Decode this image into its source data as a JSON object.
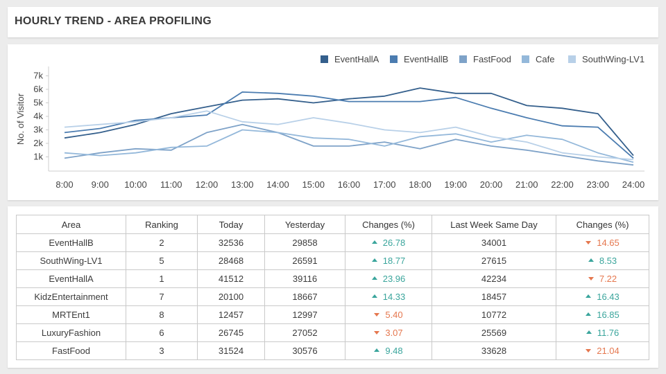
{
  "header": {
    "title": "HOURLY TREND - AREA PROFILING"
  },
  "chart_data": {
    "type": "line",
    "title": "",
    "xlabel": "",
    "ylabel": "No. of Visitor",
    "x": [
      "8:00",
      "9:00",
      "10:00",
      "11:00",
      "12:00",
      "13:00",
      "14:00",
      "15:00",
      "16:00",
      "17:00",
      "18:00",
      "19:00",
      "20:00",
      "21:00",
      "22:00",
      "23:00",
      "24:00"
    ],
    "yticks": [
      1000,
      2000,
      3000,
      4000,
      5000,
      6000,
      7000
    ],
    "ytick_labels": [
      "1k",
      "2k",
      "3k",
      "4k",
      "5k",
      "6k",
      "7k"
    ],
    "ylim": [
      0,
      7000
    ],
    "legend_position": "top-right",
    "series": [
      {
        "name": "EventHallA",
        "color": "#345f8c",
        "values": [
          2400,
          2800,
          3400,
          4200,
          4700,
          5200,
          5300,
          5000,
          5300,
          5500,
          6100,
          5700,
          5700,
          4800,
          4600,
          4200,
          1100
        ]
      },
      {
        "name": "EventHallB",
        "color": "#4b7cb0",
        "values": [
          2800,
          3100,
          3700,
          3900,
          4100,
          5800,
          5700,
          5500,
          5100,
          5100,
          5100,
          5400,
          4600,
          3900,
          3300,
          3200,
          900
        ]
      },
      {
        "name": "FastFood",
        "color": "#7ea2c8",
        "values": [
          900,
          1300,
          1600,
          1500,
          2800,
          3400,
          2800,
          1800,
          1800,
          2100,
          1600,
          2300,
          1800,
          1500,
          1100,
          700,
          400
        ]
      },
      {
        "name": "Cafe",
        "color": "#94b8da",
        "values": [
          1300,
          1100,
          1300,
          1700,
          1800,
          3000,
          2800,
          2400,
          2300,
          1800,
          2500,
          2700,
          2100,
          2600,
          2300,
          1300,
          600
        ]
      },
      {
        "name": "SouthWing-LV1",
        "color": "#b8d0e8",
        "values": [
          3200,
          3400,
          3600,
          3900,
          4400,
          3600,
          3400,
          3900,
          3500,
          3000,
          2800,
          3200,
          2500,
          2100,
          1300,
          1000,
          800
        ]
      }
    ]
  },
  "table": {
    "headers": [
      "Area",
      "Ranking",
      "Today",
      "Yesterday",
      "Changes (%)",
      "Last Week Same Day",
      "Changes (%)"
    ],
    "rows": [
      {
        "area": "EventHallB",
        "ranking": "2",
        "today": "32536",
        "yesterday": "29858",
        "change1": "26.78",
        "change1_dir": "up",
        "lastweek": "34001",
        "change2": "14.65",
        "change2_dir": "down"
      },
      {
        "area": "SouthWing-LV1",
        "ranking": "5",
        "today": "28468",
        "yesterday": "26591",
        "change1": "18.77",
        "change1_dir": "up",
        "lastweek": "27615",
        "change2": "8.53",
        "change2_dir": "up"
      },
      {
        "area": "EventHallA",
        "ranking": "1",
        "today": "41512",
        "yesterday": "39116",
        "change1": "23.96",
        "change1_dir": "up",
        "lastweek": "42234",
        "change2": "7.22",
        "change2_dir": "down"
      },
      {
        "area": "KidzEntertainment",
        "ranking": "7",
        "today": "20100",
        "yesterday": "18667",
        "change1": "14.33",
        "change1_dir": "up",
        "lastweek": "18457",
        "change2": "16.43",
        "change2_dir": "up"
      },
      {
        "area": "MRTEnt1",
        "ranking": "8",
        "today": "12457",
        "yesterday": "12997",
        "change1": "5.40",
        "change1_dir": "down",
        "lastweek": "10772",
        "change2": "16.85",
        "change2_dir": "up"
      },
      {
        "area": "LuxuryFashion",
        "ranking": "6",
        "today": "26745",
        "yesterday": "27052",
        "change1": "3.07",
        "change1_dir": "down",
        "lastweek": "25569",
        "change2": "11.76",
        "change2_dir": "up"
      },
      {
        "area": "FastFood",
        "ranking": "3",
        "today": "31524",
        "yesterday": "30576",
        "change1": "9.48",
        "change1_dir": "up",
        "lastweek": "33628",
        "change2": "21.04",
        "change2_dir": "down"
      }
    ]
  }
}
